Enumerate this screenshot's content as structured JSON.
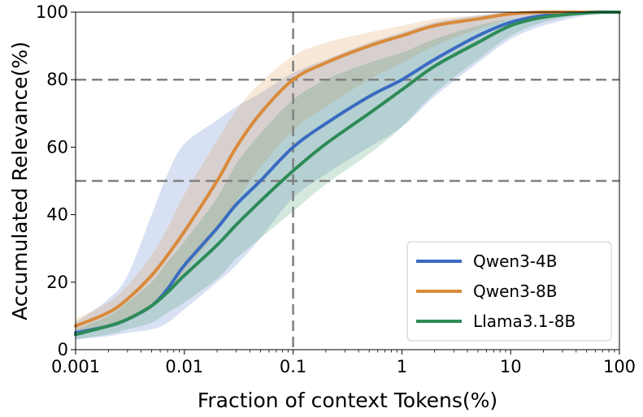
{
  "chart_data": {
    "type": "line",
    "xlabel": "Fraction of context Tokens(%)",
    "ylabel": "Accumulated Relevance(%)",
    "x_scale": "log",
    "xlim": [
      0.001,
      100
    ],
    "ylim": [
      0,
      100
    ],
    "x_ticks": [
      0.001,
      0.01,
      0.1,
      1,
      10,
      100
    ],
    "x_tick_labels": [
      "0.001",
      "0.01",
      "0.1",
      "1",
      "10",
      "100"
    ],
    "y_ticks": [
      0,
      20,
      40,
      60,
      80,
      100
    ],
    "y_tick_labels": [
      "0",
      "20",
      "40",
      "60",
      "80",
      "100"
    ],
    "reference_lines": {
      "horizontal": [
        50,
        80
      ],
      "vertical": [
        0.1
      ]
    },
    "legend_position": "bottom-right",
    "series": [
      {
        "name": "Qwen3-4B",
        "color": "#3a6bc1",
        "x": [
          0.001,
          0.002,
          0.003,
          0.005,
          0.007,
          0.01,
          0.02,
          0.03,
          0.05,
          0.1,
          0.2,
          0.5,
          1,
          2,
          5,
          10,
          20,
          50,
          100
        ],
        "y": [
          5,
          7,
          9,
          13,
          18,
          25,
          36,
          43,
          50,
          60,
          67,
          75,
          80,
          86,
          93,
          97,
          99,
          100,
          100
        ],
        "upper": [
          8,
          15,
          22,
          40,
          52,
          61,
          68,
          72,
          76,
          82,
          86,
          91,
          94,
          97,
          99,
          100,
          100,
          100,
          100
        ],
        "lower": [
          3,
          4,
          5,
          6,
          8,
          12,
          20,
          25,
          33,
          45,
          52,
          60,
          66,
          75,
          85,
          92,
          96,
          99,
          100
        ]
      },
      {
        "name": "Qwen3-8B",
        "color": "#d98a3a",
        "x": [
          0.001,
          0.002,
          0.003,
          0.005,
          0.007,
          0.01,
          0.02,
          0.03,
          0.05,
          0.1,
          0.2,
          0.5,
          1,
          2,
          5,
          10,
          20,
          50,
          100
        ],
        "y": [
          7,
          11,
          15,
          22,
          28,
          35,
          50,
          60,
          70,
          80,
          85,
          90,
          93,
          96,
          98,
          99.5,
          100,
          100,
          100
        ],
        "upper": [
          9,
          14,
          19,
          28,
          36,
          46,
          62,
          71,
          79,
          87,
          91,
          94,
          96,
          98,
          99,
          100,
          100,
          100,
          100
        ],
        "lower": [
          5,
          7,
          9,
          13,
          17,
          23,
          35,
          44,
          54,
          65,
          72,
          80,
          85,
          90,
          95,
          98,
          99,
          100,
          100
        ]
      },
      {
        "name": "Llama3.1-8B",
        "color": "#2e8b57",
        "x": [
          0.001,
          0.002,
          0.003,
          0.005,
          0.007,
          0.01,
          0.02,
          0.03,
          0.05,
          0.1,
          0.2,
          0.5,
          1,
          2,
          5,
          10,
          20,
          50,
          100
        ],
        "y": [
          4.5,
          7,
          9,
          13,
          17,
          22,
          31,
          37,
          44,
          53,
          61,
          70,
          77,
          84,
          91,
          96,
          98.5,
          99.8,
          100
        ],
        "upper": [
          6,
          10,
          14,
          20,
          26,
          32,
          45,
          55,
          64,
          74,
          80,
          85,
          88,
          92,
          96,
          98,
          99,
          100,
          100
        ],
        "lower": [
          3,
          4.5,
          6,
          8,
          11,
          14,
          21,
          27,
          33,
          41,
          49,
          58,
          66,
          76,
          86,
          93,
          97,
          99.5,
          100
        ]
      }
    ]
  }
}
